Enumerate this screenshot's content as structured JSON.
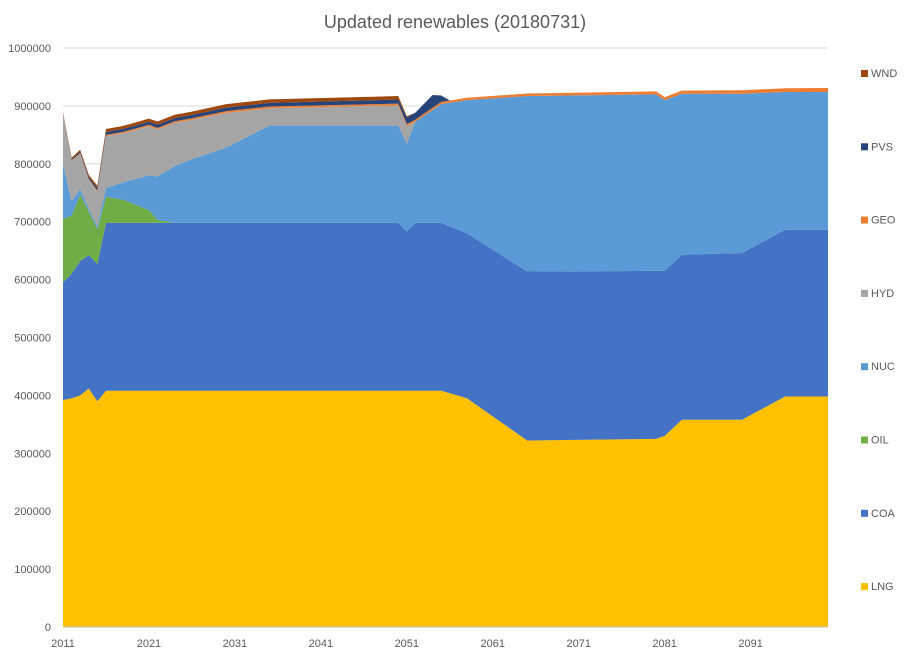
{
  "chart_data": {
    "type": "area",
    "stacked": true,
    "title": "Updated renewables (20180731)",
    "xlabel": "",
    "ylabel": "",
    "x_ticks": [
      "2011",
      "2021",
      "2031",
      "2041",
      "2051",
      "2061",
      "2071",
      "2081",
      "2091"
    ],
    "y_ticks": [
      "0",
      "100000",
      "200000",
      "300000",
      "400000",
      "500000",
      "600000",
      "700000",
      "800000",
      "900000",
      "1000000"
    ],
    "xlim": [
      2011,
      2100
    ],
    "ylim": [
      0,
      1000000
    ],
    "grid": "horizontal",
    "legend_position": "right",
    "series": [
      {
        "name": "LNG",
        "color": "#FFC000",
        "points": [
          [
            2011,
            392000
          ],
          [
            2012,
            395000
          ],
          [
            2013,
            400000
          ],
          [
            2014,
            412000
          ],
          [
            2015,
            390000
          ],
          [
            2016,
            408000
          ],
          [
            2055,
            408000
          ],
          [
            2058,
            395000
          ],
          [
            2065,
            322000
          ],
          [
            2080,
            325000
          ],
          [
            2081,
            330000
          ],
          [
            2083,
            358000
          ],
          [
            2090,
            358000
          ],
          [
            2095,
            398000
          ],
          [
            2100,
            398000
          ]
        ]
      },
      {
        "name": "COA",
        "color": "#4472C4",
        "points": [
          [
            2011,
            203000
          ],
          [
            2012,
            215000
          ],
          [
            2013,
            232000
          ],
          [
            2014,
            230000
          ],
          [
            2015,
            237000
          ],
          [
            2016,
            290000
          ],
          [
            2050,
            290000
          ],
          [
            2051,
            275000
          ],
          [
            2052,
            290000
          ],
          [
            2055,
            290000
          ],
          [
            2058,
            285000
          ],
          [
            2065,
            292000
          ],
          [
            2080,
            290000
          ],
          [
            2081,
            285000
          ],
          [
            2083,
            285000
          ],
          [
            2090,
            288000
          ],
          [
            2095,
            288000
          ],
          [
            2100,
            288000
          ]
        ]
      },
      {
        "name": "OIL",
        "color": "#70AD47",
        "points": [
          [
            2011,
            110000
          ],
          [
            2012,
            100000
          ],
          [
            2013,
            115000
          ],
          [
            2014,
            75000
          ],
          [
            2015,
            60000
          ],
          [
            2016,
            45000
          ],
          [
            2018,
            40000
          ],
          [
            2021,
            22000
          ],
          [
            2022,
            5000
          ],
          [
            2024,
            0
          ],
          [
            2100,
            0
          ]
        ]
      },
      {
        "name": "NUC",
        "color": "#5B9BD5",
        "points": [
          [
            2011,
            95000
          ],
          [
            2012,
            25000
          ],
          [
            2013,
            10000
          ],
          [
            2014,
            5000
          ],
          [
            2015,
            5000
          ],
          [
            2016,
            15000
          ],
          [
            2018,
            30000
          ],
          [
            2021,
            60000
          ],
          [
            2022,
            75000
          ],
          [
            2024,
            98000
          ],
          [
            2026,
            110000
          ],
          [
            2030,
            130000
          ],
          [
            2035,
            168000
          ],
          [
            2050,
            168000
          ],
          [
            2051,
            152000
          ],
          [
            2052,
            175000
          ],
          [
            2055,
            205000
          ],
          [
            2058,
            230000
          ],
          [
            2065,
            303000
          ],
          [
            2080,
            305000
          ],
          [
            2081,
            295000
          ],
          [
            2083,
            278000
          ],
          [
            2090,
            275000
          ],
          [
            2095,
            238000
          ],
          [
            2100,
            238000
          ]
        ]
      },
      {
        "name": "HYD",
        "color": "#A5A5A5",
        "points": [
          [
            2011,
            85000
          ],
          [
            2012,
            70000
          ],
          [
            2013,
            60000
          ],
          [
            2014,
            50000
          ],
          [
            2015,
            60000
          ],
          [
            2016,
            90000
          ],
          [
            2018,
            85000
          ],
          [
            2021,
            85000
          ],
          [
            2024,
            75000
          ],
          [
            2026,
            68000
          ],
          [
            2030,
            60000
          ],
          [
            2035,
            30000
          ],
          [
            2050,
            35000
          ],
          [
            2051,
            30000
          ],
          [
            2052,
            0
          ],
          [
            2100,
            0
          ]
        ]
      },
      {
        "name": "GEO",
        "color": "#ED7D31",
        "points": [
          [
            2011,
            1000
          ],
          [
            2016,
            2000
          ],
          [
            2030,
            3000
          ],
          [
            2050,
            3000
          ],
          [
            2055,
            4000
          ],
          [
            2080,
            5000
          ],
          [
            2100,
            7000
          ]
        ]
      },
      {
        "name": "PVS",
        "color": "#264478",
        "points": [
          [
            2011,
            1000
          ],
          [
            2016,
            5000
          ],
          [
            2030,
            6000
          ],
          [
            2050,
            7000
          ],
          [
            2051,
            12000
          ],
          [
            2052,
            12000
          ],
          [
            2054,
            22000
          ],
          [
            2056,
            0
          ],
          [
            2100,
            0
          ]
        ]
      },
      {
        "name": "WND",
        "color": "#9E480E",
        "points": [
          [
            2011,
            2000
          ],
          [
            2016,
            5000
          ],
          [
            2030,
            6000
          ],
          [
            2050,
            6000
          ],
          [
            2051,
            2000
          ],
          [
            2052,
            0
          ],
          [
            2100,
            0
          ]
        ]
      }
    ]
  }
}
